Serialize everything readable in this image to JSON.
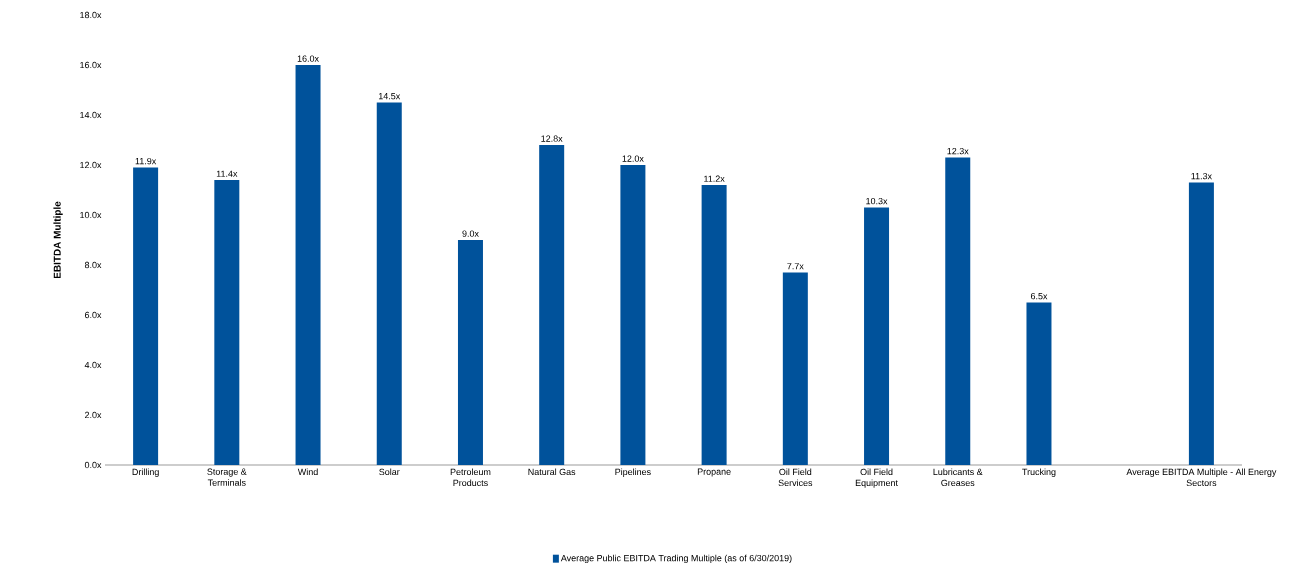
{
  "chart_data": {
    "type": "bar",
    "ylabel": "EBITDA Multiple",
    "categories": [
      "Drilling",
      "Storage & Terminals",
      "Wind",
      "Solar",
      "Petroleum Products",
      "Natural Gas",
      "Pipelines",
      "Propane",
      "Oil Field Services",
      "Oil Field Equipment",
      "Lubricants & Greases",
      "Trucking",
      null,
      "Average EBITDA Multiple - All Energy Sectors"
    ],
    "series": [
      {
        "name": "Average Public EBITDA Trading Multiple (as of 6/30/2019)",
        "color": "#00529b",
        "values": [
          11.9,
          11.4,
          16.0,
          14.5,
          9.0,
          12.8,
          12.0,
          11.2,
          7.7,
          10.3,
          12.3,
          6.5,
          null,
          11.3
        ],
        "value_labels": [
          "11.9x",
          "11.4x",
          "16.0x",
          "14.5x",
          "9.0x",
          "12.8x",
          "12.0x",
          "11.2x",
          "7.7x",
          "10.3x",
          "12.3x",
          "6.5x",
          null,
          "11.3x"
        ]
      }
    ],
    "ylim": [
      0,
      18
    ],
    "yticks": [
      {
        "value": 0,
        "label": "0.0x"
      },
      {
        "value": 2,
        "label": "2.0x"
      },
      {
        "value": 4,
        "label": "4.0x"
      },
      {
        "value": 6,
        "label": "6.0x"
      },
      {
        "value": 8,
        "label": "8.0x"
      },
      {
        "value": 10,
        "label": "10.0x"
      },
      {
        "value": 12,
        "label": "12.0x"
      },
      {
        "value": 14,
        "label": "14.0x"
      },
      {
        "value": 16,
        "label": "16.0x"
      },
      {
        "value": 18,
        "label": "18.0x"
      }
    ],
    "legend": "bottom"
  }
}
